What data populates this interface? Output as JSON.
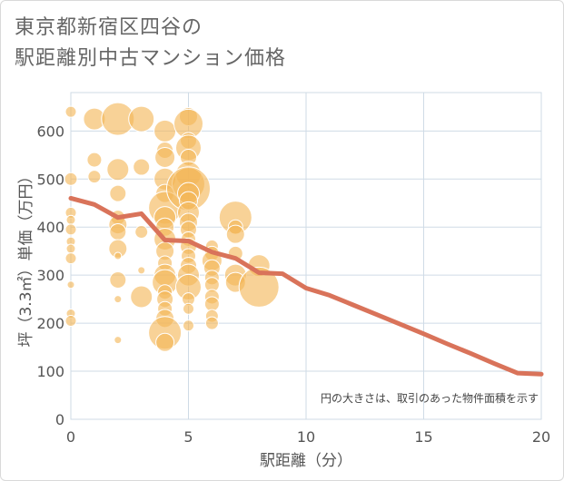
{
  "title_line1": "東京都新宿区四谷の",
  "title_line2": "駅距離別中古マンション価格",
  "chart_data": {
    "type": "scatter",
    "xlabel": "駅距離（分）",
    "ylabel": "坪（3.3㎡）単価（万円）",
    "xlim": [
      0,
      20
    ],
    "ylim": [
      0,
      680
    ],
    "xticks": [
      0,
      5,
      10,
      15,
      20
    ],
    "yticks": [
      0,
      100,
      200,
      300,
      400,
      500,
      600
    ],
    "grid": true,
    "note": "円の大きさは、取引のあった物件面積を示す",
    "colors": {
      "bubble": "#f3b757",
      "line": "#d9735a",
      "grid": "#cfdbe6"
    },
    "bubbles": [
      {
        "x": 0,
        "y": 640,
        "s": 6
      },
      {
        "x": 0,
        "y": 500,
        "s": 7
      },
      {
        "x": 0,
        "y": 430,
        "s": 6
      },
      {
        "x": 0,
        "y": 415,
        "s": 5
      },
      {
        "x": 0,
        "y": 395,
        "s": 6
      },
      {
        "x": 0,
        "y": 370,
        "s": 5
      },
      {
        "x": 0,
        "y": 355,
        "s": 5
      },
      {
        "x": 0,
        "y": 335,
        "s": 6
      },
      {
        "x": 0,
        "y": 280,
        "s": 4
      },
      {
        "x": 0,
        "y": 220,
        "s": 5
      },
      {
        "x": 0,
        "y": 205,
        "s": 6
      },
      {
        "x": 1,
        "y": 625,
        "s": 12
      },
      {
        "x": 1,
        "y": 540,
        "s": 8
      },
      {
        "x": 1,
        "y": 505,
        "s": 7
      },
      {
        "x": 2,
        "y": 625,
        "s": 18
      },
      {
        "x": 2,
        "y": 520,
        "s": 12
      },
      {
        "x": 2,
        "y": 470,
        "s": 9
      },
      {
        "x": 2,
        "y": 420,
        "s": 8
      },
      {
        "x": 2,
        "y": 405,
        "s": 10
      },
      {
        "x": 2,
        "y": 390,
        "s": 9
      },
      {
        "x": 2,
        "y": 355,
        "s": 10
      },
      {
        "x": 2,
        "y": 340,
        "s": 4
      },
      {
        "x": 2,
        "y": 290,
        "s": 9
      },
      {
        "x": 2,
        "y": 250,
        "s": 4
      },
      {
        "x": 2,
        "y": 165,
        "s": 4
      },
      {
        "x": 3,
        "y": 625,
        "s": 14
      },
      {
        "x": 3,
        "y": 525,
        "s": 9
      },
      {
        "x": 3,
        "y": 390,
        "s": 7
      },
      {
        "x": 3,
        "y": 310,
        "s": 4
      },
      {
        "x": 3,
        "y": 255,
        "s": 12
      },
      {
        "x": 4,
        "y": 600,
        "s": 12
      },
      {
        "x": 4,
        "y": 560,
        "s": 9
      },
      {
        "x": 4,
        "y": 545,
        "s": 11
      },
      {
        "x": 4,
        "y": 500,
        "s": 12
      },
      {
        "x": 4,
        "y": 470,
        "s": 10
      },
      {
        "x": 4,
        "y": 440,
        "s": 18
      },
      {
        "x": 4,
        "y": 420,
        "s": 12
      },
      {
        "x": 4,
        "y": 400,
        "s": 10
      },
      {
        "x": 4,
        "y": 375,
        "s": 12
      },
      {
        "x": 4,
        "y": 350,
        "s": 10
      },
      {
        "x": 4,
        "y": 325,
        "s": 8
      },
      {
        "x": 4,
        "y": 300,
        "s": 12
      },
      {
        "x": 4,
        "y": 285,
        "s": 14
      },
      {
        "x": 4,
        "y": 265,
        "s": 8
      },
      {
        "x": 4,
        "y": 250,
        "s": 9
      },
      {
        "x": 4,
        "y": 230,
        "s": 8
      },
      {
        "x": 4,
        "y": 210,
        "s": 10
      },
      {
        "x": 4,
        "y": 180,
        "s": 18
      },
      {
        "x": 4,
        "y": 160,
        "s": 10
      },
      {
        "x": 5,
        "y": 630,
        "s": 10
      },
      {
        "x": 5,
        "y": 615,
        "s": 16
      },
      {
        "x": 5,
        "y": 580,
        "s": 9
      },
      {
        "x": 5,
        "y": 565,
        "s": 14
      },
      {
        "x": 5,
        "y": 545,
        "s": 9
      },
      {
        "x": 5,
        "y": 510,
        "s": 14
      },
      {
        "x": 5,
        "y": 490,
        "s": 18
      },
      {
        "x": 5,
        "y": 480,
        "s": 24
      },
      {
        "x": 5,
        "y": 470,
        "s": 12
      },
      {
        "x": 5,
        "y": 455,
        "s": 10
      },
      {
        "x": 5,
        "y": 430,
        "s": 12
      },
      {
        "x": 5,
        "y": 410,
        "s": 10
      },
      {
        "x": 5,
        "y": 395,
        "s": 9
      },
      {
        "x": 5,
        "y": 375,
        "s": 8
      },
      {
        "x": 5,
        "y": 360,
        "s": 9
      },
      {
        "x": 5,
        "y": 340,
        "s": 8
      },
      {
        "x": 5,
        "y": 320,
        "s": 9
      },
      {
        "x": 5,
        "y": 300,
        "s": 12
      },
      {
        "x": 5,
        "y": 275,
        "s": 14
      },
      {
        "x": 5,
        "y": 250,
        "s": 7
      },
      {
        "x": 5,
        "y": 230,
        "s": 6
      },
      {
        "x": 5,
        "y": 195,
        "s": 6
      },
      {
        "x": 6,
        "y": 360,
        "s": 7
      },
      {
        "x": 6,
        "y": 345,
        "s": 8
      },
      {
        "x": 6,
        "y": 330,
        "s": 11
      },
      {
        "x": 6,
        "y": 315,
        "s": 9
      },
      {
        "x": 6,
        "y": 295,
        "s": 8
      },
      {
        "x": 6,
        "y": 280,
        "s": 8
      },
      {
        "x": 6,
        "y": 255,
        "s": 8
      },
      {
        "x": 6,
        "y": 240,
        "s": 8
      },
      {
        "x": 6,
        "y": 215,
        "s": 7
      },
      {
        "x": 6,
        "y": 200,
        "s": 7
      },
      {
        "x": 7,
        "y": 420,
        "s": 18
      },
      {
        "x": 7,
        "y": 400,
        "s": 8
      },
      {
        "x": 7,
        "y": 385,
        "s": 10
      },
      {
        "x": 7,
        "y": 345,
        "s": 8
      },
      {
        "x": 7,
        "y": 300,
        "s": 12
      },
      {
        "x": 7,
        "y": 285,
        "s": 11
      },
      {
        "x": 8,
        "y": 320,
        "s": 12
      },
      {
        "x": 8,
        "y": 275,
        "s": 22
      }
    ],
    "line": {
      "x": [
        0,
        1,
        2,
        3,
        4,
        5,
        6,
        7,
        8,
        9,
        10,
        11,
        12,
        13,
        14,
        15,
        16,
        17,
        18,
        19,
        20
      ],
      "y": [
        460,
        447,
        420,
        428,
        373,
        371,
        348,
        335,
        305,
        303,
        273,
        258,
        238,
        218,
        198,
        178,
        157,
        137,
        116,
        96,
        94
      ]
    }
  }
}
